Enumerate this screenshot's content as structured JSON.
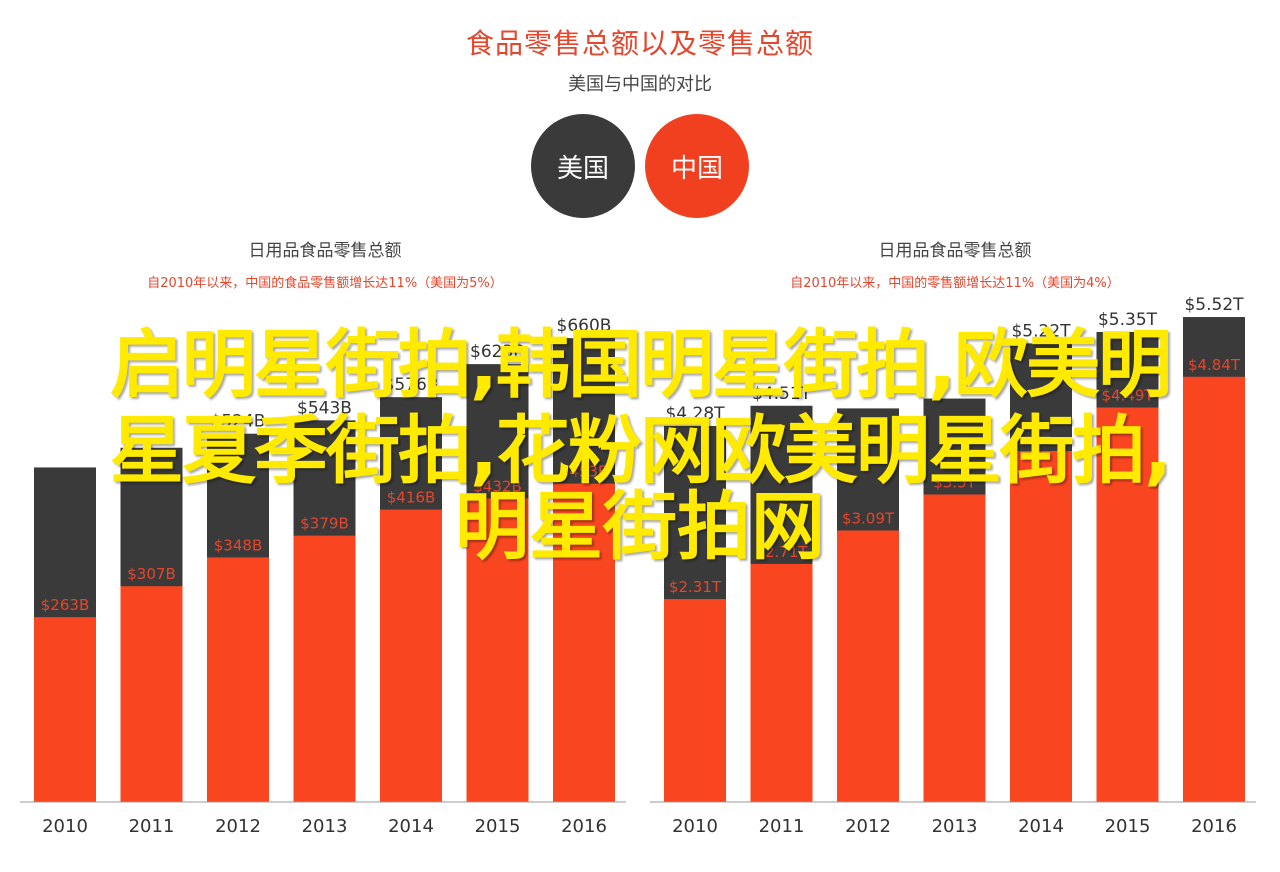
{
  "header": {
    "title": "食品零售总额以及零售总额",
    "subtitle": "美国与中国的对比"
  },
  "legend": {
    "us": "美国",
    "cn": "中国",
    "us_color": "#3a3a3a",
    "cn_color": "#fa4620"
  },
  "overlay": {
    "line1": "启明星街拍,韩国明星街拍,欧美明",
    "line2": "星夏季街拍,花粉网欧美明星街拍,",
    "line3": "明星街拍网"
  },
  "chart_data": [
    {
      "type": "bar",
      "title": "日用品食品零售总额",
      "subtitle": "自2010年以来，中国的食品零售额增长达11%（美国为5%）",
      "categories": [
        "2010",
        "2011",
        "2012",
        "2013",
        "2014",
        "2015",
        "2016"
      ],
      "ylim": [
        0,
        700
      ],
      "series": [
        {
          "name": "美国",
          "values": [
            null,
            null,
            524,
            543,
            576,
            623,
            660
          ],
          "labels": [
            "",
            "",
            "$524B",
            "$543B",
            "$576B",
            "$623B",
            "$660B"
          ]
        },
        {
          "name": "中国",
          "values": [
            263,
            307,
            348,
            379,
            416,
            432,
            453
          ],
          "labels": [
            "$263B",
            "$307B",
            "$348B",
            "$379B",
            "$416B",
            "$432B",
            "$453B"
          ]
        }
      ]
    },
    {
      "type": "bar",
      "title": "日用品食品零售总额",
      "subtitle": "自2010年以来，中国的零售额增长达11%（美国为4%）",
      "categories": [
        "2010",
        "2011",
        "2012",
        "2013",
        "2014",
        "2015",
        "2016"
      ],
      "ylim": [
        0,
        5.6
      ],
      "series": [
        {
          "name": "美国",
          "values": [
            4.28,
            4.51,
            null,
            null,
            5.22,
            5.35,
            5.52
          ],
          "labels": [
            "$4.28T",
            "$4.51T",
            "",
            "",
            "$5.22T",
            "$5.35T",
            "$5.52T"
          ]
        },
        {
          "name": "中国",
          "values": [
            2.31,
            2.71,
            3.09,
            3.5,
            null,
            4.49,
            4.84
          ],
          "labels": [
            "$2.31T",
            "$2.71T",
            "$3.09T",
            "$3.5T",
            "",
            "$4.49T",
            "$4.84T"
          ]
        }
      ]
    }
  ]
}
